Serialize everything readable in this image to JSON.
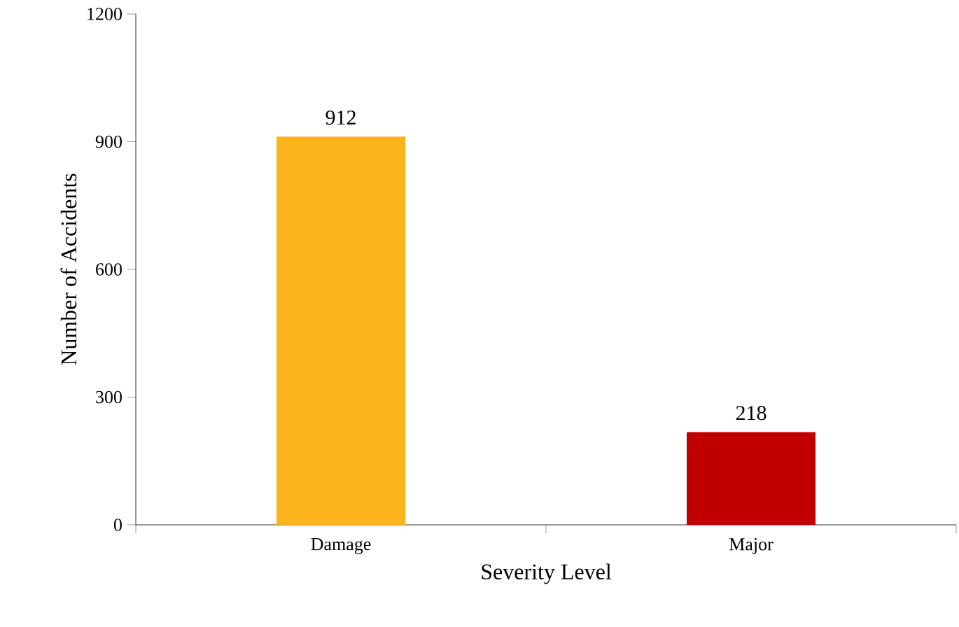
{
  "chart_data": {
    "type": "bar",
    "xlabel": "Severity Level",
    "ylabel": "Number of Accidents",
    "categories": [
      "Damage",
      "Major"
    ],
    "values": [
      912,
      218
    ],
    "colors": [
      "#fbb41c",
      "#c00000"
    ],
    "ylim": [
      0,
      1200
    ],
    "yticks": [
      0,
      300,
      600,
      900,
      1200
    ],
    "data_labels": true
  }
}
